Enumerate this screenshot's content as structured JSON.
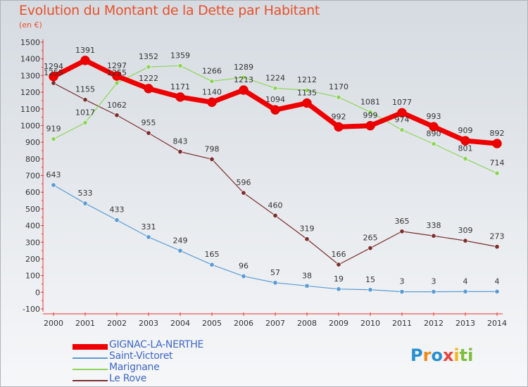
{
  "title": "Evolution du Montant de la Dette par Habitant",
  "unit_label": "(en €)",
  "logo": {
    "text": "Proxiti",
    "letters": [
      {
        "ch": "P",
        "color": "#2a8fd0"
      },
      {
        "ch": "r",
        "color": "#f08a1c"
      },
      {
        "ch": "o",
        "color": "#2a8fd0"
      },
      {
        "ch": "x",
        "color": "#e8433a"
      },
      {
        "ch": "i",
        "color": "#f5b51c"
      },
      {
        "ch": "t",
        "color": "#7cbf3a"
      },
      {
        "ch": "i",
        "color": "#7cbf3a"
      }
    ]
  },
  "chart_data": {
    "type": "line",
    "title": "Evolution du Montant de la Dette par Habitant",
    "ylabel": "(en €)",
    "xlabel": "",
    "ylim": [
      -100,
      1500
    ],
    "ytick_step": 100,
    "grid": false,
    "legend_position": "bottom-left",
    "x": [
      2000,
      2001,
      2002,
      2003,
      2004,
      2005,
      2006,
      2007,
      2008,
      2009,
      2010,
      2011,
      2012,
      2013,
      2014
    ],
    "series": [
      {
        "name": "GIGNAC-LA-NERTHE",
        "color": "#ee0000",
        "values": [
          1294,
          1391,
          1297,
          1222,
          1171,
          1140,
          1213,
          1094,
          1135,
          992,
          999,
          1077,
          993,
          909,
          892
        ]
      },
      {
        "name": "Saint-Victoret",
        "color": "#5b9bd5",
        "values": [
          643,
          533,
          433,
          331,
          249,
          165,
          96,
          57,
          38,
          19,
          15,
          3,
          3,
          4,
          4
        ]
      },
      {
        "name": "Marignane",
        "color": "#8fd45a",
        "values": [
          919,
          1017,
          1255,
          1352,
          1359,
          1266,
          1289,
          1224,
          1212,
          1170,
          1081,
          974,
          890,
          801,
          714
        ]
      },
      {
        "name": "Le Rove",
        "color": "#7b2e2e",
        "values": [
          1255,
          1155,
          1062,
          955,
          843,
          798,
          596,
          460,
          319,
          166,
          265,
          365,
          338,
          309,
          273
        ]
      }
    ]
  }
}
